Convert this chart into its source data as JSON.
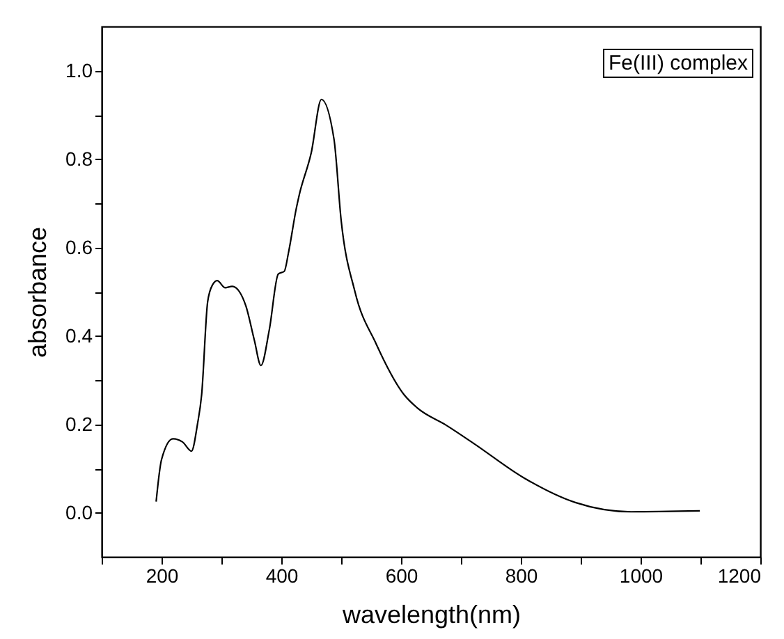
{
  "chart_data": {
    "type": "line",
    "xlabel": "wavelength(nm)",
    "ylabel": "absorbance",
    "annotations": [
      "Fe(III) complex"
    ],
    "xlim": [
      100,
      1200
    ],
    "ylim": [
      -0.1,
      1.1
    ],
    "xticks": [
      {
        "value": 100,
        "label": null
      },
      200,
      {
        "value": 300,
        "label": null
      },
      400,
      {
        "value": 500,
        "label": null
      },
      600,
      {
        "value": 700,
        "label": null
      },
      800,
      {
        "value": 900,
        "label": null
      },
      1000,
      {
        "value": 1100,
        "label": null
      },
      1200
    ],
    "yticks": [
      {
        "value": 0,
        "label": "0.0"
      },
      {
        "value": 0.1,
        "label": null
      },
      0.2,
      {
        "value": 0.3,
        "label": null
      },
      0.4,
      {
        "value": 0.5,
        "label": null
      },
      0.6,
      {
        "value": 0.7,
        "label": null
      },
      0.8,
      {
        "value": 0.9,
        "label": null
      },
      {
        "value": 1,
        "label": "1.0"
      }
    ],
    "grid": false,
    "series": [
      {
        "color": "#000000",
        "x": [
          191,
          200,
          219,
          235,
          250,
          260,
          267,
          277,
          285,
          293,
          306,
          318,
          330,
          341,
          355,
          366,
          380,
          395,
          405,
          412,
          425,
          430,
          450,
          467,
          488,
          500,
          523,
          558,
          605,
          628,
          674,
          721,
          806,
          891,
          984,
          1099
        ],
        "values": [
          0.025,
          0.12,
          0.167,
          0.16,
          0.139,
          0.2,
          0.267,
          0.477,
          0.515,
          0.525,
          0.509,
          0.512,
          0.5,
          0.467,
          0.39,
          0.333,
          0.414,
          0.54,
          0.546,
          0.588,
          0.688,
          0.719,
          0.814,
          0.935,
          0.845,
          0.661,
          0.5,
          0.383,
          0.267,
          0.236,
          0.199,
          0.157,
          0.078,
          0.023,
          0.002,
          0.004
        ]
      }
    ]
  }
}
